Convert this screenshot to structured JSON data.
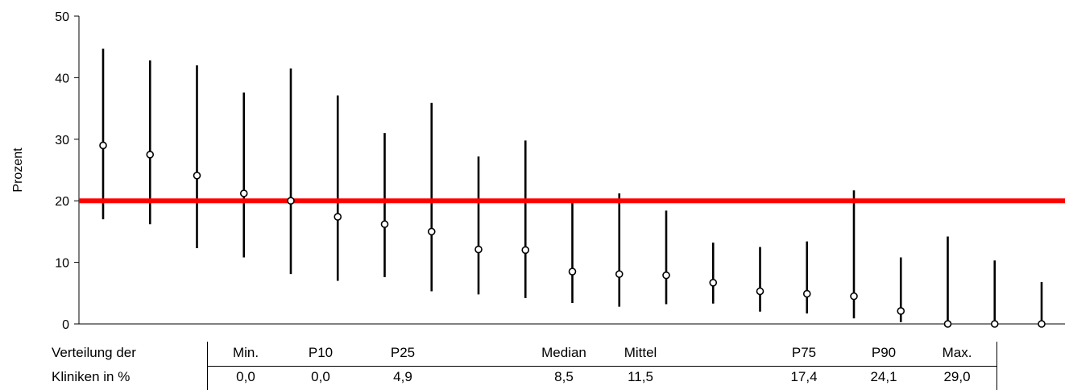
{
  "chart_data": {
    "type": "scatter",
    "ylabel": "Prozent",
    "ylim": [
      0,
      50
    ],
    "yticks": [
      0,
      10,
      20,
      30,
      40,
      50
    ],
    "reference_line": {
      "value": 20,
      "color": "#ff0000"
    },
    "series": [
      {
        "points": [
          {
            "rank": 1,
            "value": 29.0,
            "lower": 17.0,
            "upper": 44.7
          },
          {
            "rank": 2,
            "value": 27.5,
            "lower": 16.2,
            "upper": 42.8
          },
          {
            "rank": 3,
            "value": 24.1,
            "lower": 12.3,
            "upper": 42.0
          },
          {
            "rank": 4,
            "value": 21.2,
            "lower": 10.8,
            "upper": 37.6
          },
          {
            "rank": 5,
            "value": 20.0,
            "lower": 8.1,
            "upper": 41.5
          },
          {
            "rank": 6,
            "value": 17.4,
            "lower": 7.0,
            "upper": 37.1
          },
          {
            "rank": 7,
            "value": 16.2,
            "lower": 7.6,
            "upper": 31.0
          },
          {
            "rank": 8,
            "value": 15.0,
            "lower": 5.3,
            "upper": 35.9
          },
          {
            "rank": 9,
            "value": 12.1,
            "lower": 4.8,
            "upper": 27.2
          },
          {
            "rank": 10,
            "value": 12.0,
            "lower": 4.2,
            "upper": 29.8
          },
          {
            "rank": 11,
            "value": 8.5,
            "lower": 3.4,
            "upper": 19.9
          },
          {
            "rank": 12,
            "value": 8.1,
            "lower": 2.8,
            "upper": 21.2
          },
          {
            "rank": 13,
            "value": 7.9,
            "lower": 3.2,
            "upper": 18.4
          },
          {
            "rank": 14,
            "value": 6.7,
            "lower": 3.3,
            "upper": 13.2
          },
          {
            "rank": 15,
            "value": 5.3,
            "lower": 2.0,
            "upper": 12.5
          },
          {
            "rank": 16,
            "value": 4.9,
            "lower": 1.7,
            "upper": 13.4
          },
          {
            "rank": 17,
            "value": 4.5,
            "lower": 0.9,
            "upper": 21.7
          },
          {
            "rank": 18,
            "value": 2.1,
            "lower": 0.3,
            "upper": 10.8
          },
          {
            "rank": 19,
            "value": 0.0,
            "lower": 0.0,
            "upper": 14.2
          },
          {
            "rank": 20,
            "value": 0.0,
            "lower": 0.0,
            "upper": 10.3
          },
          {
            "rank": 21,
            "value": 0.0,
            "lower": 0.0,
            "upper": 6.8
          }
        ]
      }
    ]
  },
  "stats_table": {
    "row_labels": [
      "Verteilung der",
      "Kliniken in %"
    ],
    "columns": [
      {
        "header": "Min.",
        "value": "0,0"
      },
      {
        "header": "P10",
        "value": "0,0"
      },
      {
        "header": "P25",
        "value": "4,9"
      },
      {
        "header": "Median",
        "value": "8,5"
      },
      {
        "header": "Mittel",
        "value": "11,5"
      },
      {
        "header": "P75",
        "value": "17,4"
      },
      {
        "header": "P90",
        "value": "24,1"
      },
      {
        "header": "Max.",
        "value": "29,0"
      }
    ]
  }
}
